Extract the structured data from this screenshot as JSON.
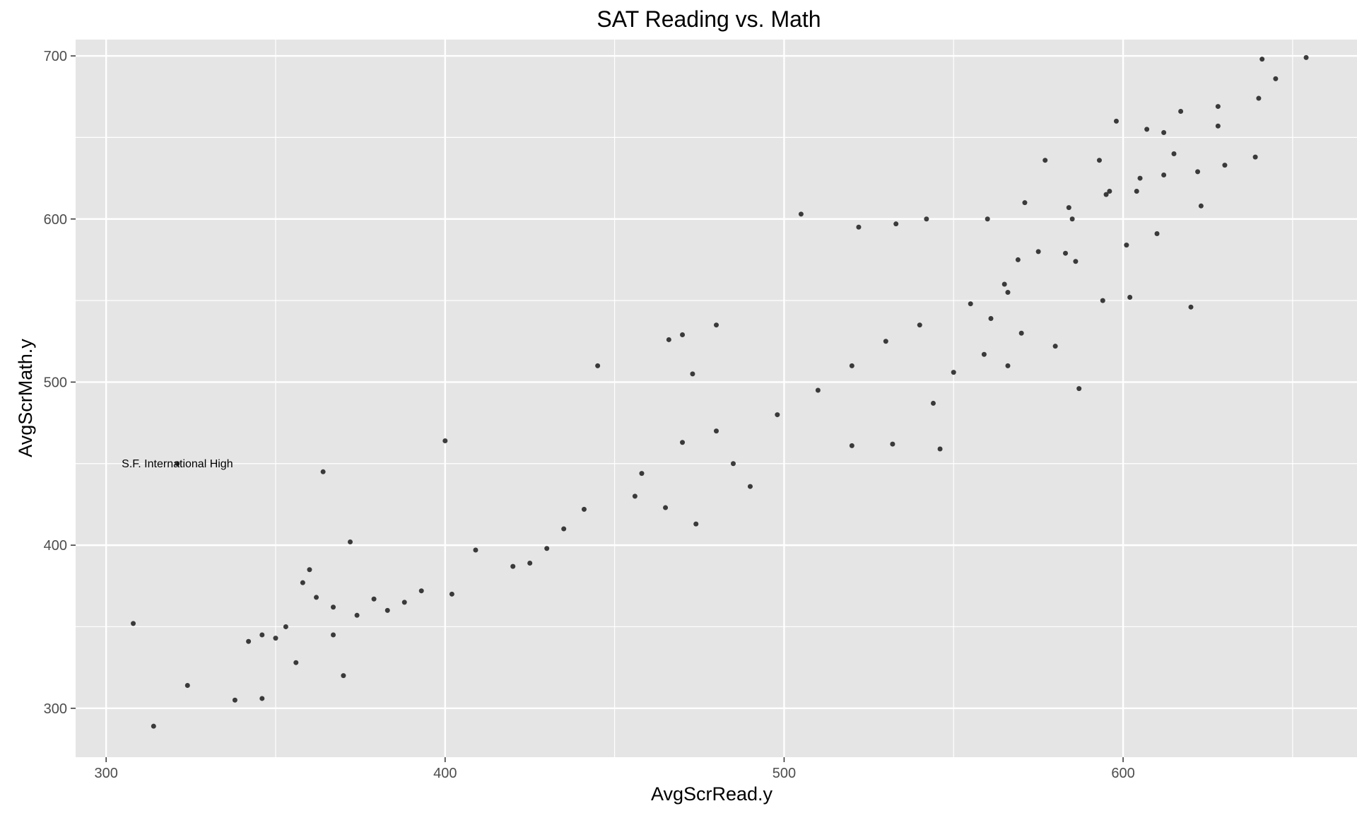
{
  "chart_data": {
    "type": "scatter",
    "title": "SAT Reading vs. Math",
    "xlabel": "AvgScrRead.y",
    "ylabel": "AvgScrMath.y",
    "xlim": [
      291,
      669
    ],
    "ylim": [
      270,
      710
    ],
    "x_ticks": [
      300,
      400,
      500,
      600
    ],
    "y_ticks": [
      300,
      400,
      500,
      600,
      700
    ],
    "x_minor": [
      350,
      450,
      550,
      650
    ],
    "y_minor": [
      350,
      450,
      550,
      650
    ],
    "grid": true,
    "point_color": "#000000",
    "point_opacity": 0.75,
    "panel_background": "#e5e5e5",
    "gridline_color": "#ffffff",
    "annotations": [
      {
        "text": "S.F. International High",
        "x": 321,
        "y": 450
      }
    ],
    "series": [
      {
        "points": [
          [
            308,
            352
          ],
          [
            314,
            289
          ],
          [
            324,
            314
          ],
          [
            321,
            450
          ],
          [
            338,
            305
          ],
          [
            346,
            306
          ],
          [
            342,
            341
          ],
          [
            346,
            345
          ],
          [
            350,
            343
          ],
          [
            353,
            350
          ],
          [
            356,
            328
          ],
          [
            360,
            385
          ],
          [
            364,
            445
          ],
          [
            367,
            345
          ],
          [
            370,
            320
          ],
          [
            372,
            402
          ],
          [
            362,
            368
          ],
          [
            358,
            377
          ],
          [
            654,
            699
          ],
          [
            641,
            698
          ],
          [
            645,
            686
          ],
          [
            639,
            638
          ],
          [
            628,
            669
          ],
          [
            620,
            546
          ],
          [
            505,
            603
          ],
          [
            587,
            496
          ],
          [
            445,
            510
          ],
          [
            400,
            464
          ],
          [
            474,
            413
          ],
          [
            546,
            459
          ],
          [
            561,
            539
          ],
          [
            465,
            423
          ],
          [
            532,
            462
          ],
          [
            559,
            517
          ],
          [
            586,
            574
          ],
          [
            584,
            607
          ],
          [
            598,
            660
          ],
          [
            612,
            653
          ],
          [
            617,
            666
          ],
          [
            623,
            608
          ],
          [
            628,
            657
          ],
          [
            640,
            674
          ],
          [
            601,
            584
          ],
          [
            602,
            552
          ],
          [
            604,
            617
          ],
          [
            610,
            591
          ],
          [
            594,
            550
          ],
          [
            596,
            617
          ],
          [
            580,
            522
          ],
          [
            570,
            530
          ],
          [
            566,
            510
          ],
          [
            550,
            506
          ],
          [
            544,
            487
          ],
          [
            520,
            461
          ],
          [
            490,
            436
          ],
          [
            485,
            450
          ],
          [
            458,
            444
          ],
          [
            435,
            410
          ],
          [
            420,
            387
          ],
          [
            425,
            389
          ],
          [
            388,
            365
          ],
          [
            383,
            360
          ],
          [
            374,
            357
          ],
          [
            367,
            362
          ],
          [
            379,
            367
          ],
          [
            393,
            372
          ],
          [
            402,
            370
          ],
          [
            409,
            397
          ],
          [
            430,
            398
          ],
          [
            441,
            422
          ],
          [
            456,
            430
          ],
          [
            470,
            463
          ],
          [
            480,
            470
          ],
          [
            498,
            480
          ],
          [
            510,
            495
          ],
          [
            520,
            510
          ],
          [
            530,
            525
          ],
          [
            540,
            535
          ],
          [
            555,
            548
          ],
          [
            565,
            560
          ],
          [
            575,
            580
          ],
          [
            585,
            600
          ],
          [
            595,
            615
          ],
          [
            605,
            625
          ],
          [
            615,
            640
          ],
          [
            630,
            633
          ],
          [
            480,
            535
          ],
          [
            470,
            529
          ],
          [
            466,
            526
          ],
          [
            473,
            505
          ],
          [
            522,
            595
          ],
          [
            542,
            600
          ],
          [
            533,
            597
          ],
          [
            560,
            600
          ],
          [
            571,
            610
          ],
          [
            577,
            636
          ],
          [
            593,
            636
          ],
          [
            607,
            655
          ],
          [
            612,
            627
          ],
          [
            622,
            629
          ],
          [
            583,
            579
          ],
          [
            569,
            575
          ],
          [
            566,
            555
          ]
        ]
      }
    ]
  }
}
